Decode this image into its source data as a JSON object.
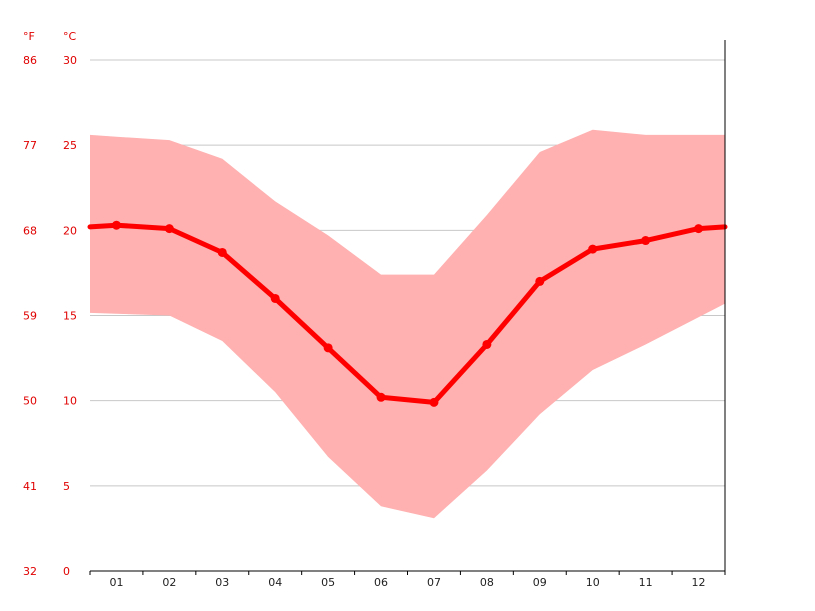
{
  "chart_data": {
    "type": "area",
    "unit_f": "°F",
    "unit_c": "°C",
    "categories": [
      "01",
      "02",
      "03",
      "04",
      "05",
      "06",
      "07",
      "08",
      "09",
      "10",
      "11",
      "12"
    ],
    "y_ticks_c": [
      0,
      5,
      10,
      15,
      20,
      25,
      30
    ],
    "y_ticks_f": [
      32,
      41,
      50,
      59,
      68,
      77,
      86
    ],
    "ylim": [
      0,
      30
    ],
    "grid": true,
    "series": [
      {
        "values": [
          20.3,
          20.1,
          18.7,
          16.0,
          13.1,
          10.2,
          9.9,
          13.3,
          17.0,
          18.9,
          19.4,
          20.1
        ]
      },
      {
        "values": [
          25.5,
          25.3,
          24.2,
          21.7,
          19.7,
          17.4,
          17.4,
          20.9,
          24.6,
          25.9,
          25.6,
          25.6
        ]
      },
      {
        "values": [
          15.1,
          15.0,
          13.5,
          10.5,
          6.7,
          3.8,
          3.1,
          5.9,
          9.2,
          11.8,
          13.3,
          14.9
        ]
      }
    ],
    "colors": {
      "line": "#ff0000",
      "band": "#ffb0b0",
      "labels": "#e00000",
      "grid": "#c8c8c8"
    }
  }
}
